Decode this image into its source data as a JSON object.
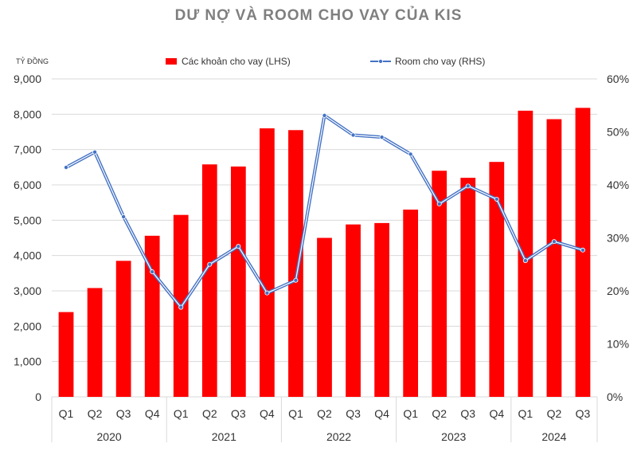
{
  "chart_data": {
    "type": "bar",
    "title": "DƯ NỢ VÀ ROOM CHO VAY CỦA KIS",
    "ylabel": "TỶ ĐỒNG",
    "ylim": [
      0,
      9000
    ],
    "y_ticks": [
      "0",
      "1,000",
      "2,000",
      "3,000",
      "4,000",
      "5,000",
      "6,000",
      "7,000",
      "8,000",
      "9,000"
    ],
    "y2lim": [
      0,
      60
    ],
    "y2_ticks": [
      "0%",
      "10%",
      "20%",
      "30%",
      "40%",
      "50%",
      "60%"
    ],
    "grid": true,
    "legend_position": "top-center",
    "categories": [
      "Q1",
      "Q2",
      "Q3",
      "Q4",
      "Q1",
      "Q2",
      "Q3",
      "Q4",
      "Q1",
      "Q2",
      "Q3",
      "Q4",
      "Q1",
      "Q2",
      "Q3",
      "Q4",
      "Q1",
      "Q2",
      "Q3"
    ],
    "year_groups": [
      {
        "label": "2020",
        "count": 4
      },
      {
        "label": "2021",
        "count": 4
      },
      {
        "label": "2022",
        "count": 4
      },
      {
        "label": "2023",
        "count": 4
      },
      {
        "label": "2024",
        "count": 3
      }
    ],
    "series": [
      {
        "name": "Các khoản cho vay (LHS)",
        "type": "bar",
        "axis": "left",
        "color": "#ff0000",
        "values": [
          2400,
          3080,
          3850,
          4560,
          5150,
          6580,
          6520,
          7600,
          7550,
          4500,
          4880,
          4920,
          5300,
          6400,
          6200,
          6650,
          8100,
          7860,
          8180
        ]
      },
      {
        "name": "Room cho vay (RHS)",
        "type": "line",
        "axis": "right",
        "color": "#4472c4",
        "values": [
          43.3,
          46.2,
          34.0,
          23.6,
          16.9,
          25.0,
          28.4,
          19.6,
          22.0,
          53.1,
          49.4,
          49.0,
          45.8,
          36.4,
          39.8,
          37.3,
          25.7,
          29.3,
          27.7
        ]
      }
    ]
  }
}
